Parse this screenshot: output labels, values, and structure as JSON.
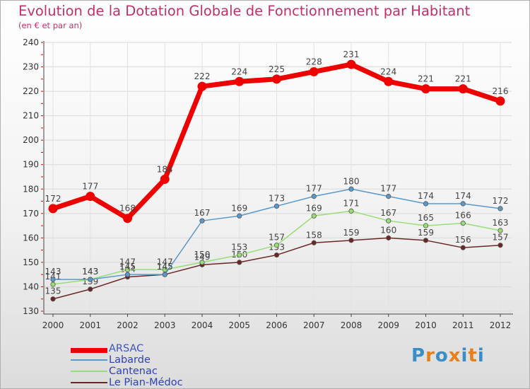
{
  "chart_data": {
    "type": "line",
    "title": "Evolution de la Dotation Globale de Fonctionnement par Habitant",
    "subtitle": "(en € et par an)",
    "x": [
      "2000",
      "2001",
      "2002",
      "2003",
      "2004",
      "2005",
      "2006",
      "2007",
      "2008",
      "2009",
      "2010",
      "2011",
      "2012"
    ],
    "ylim": [
      130,
      240
    ],
    "yticks": [
      130,
      140,
      150,
      160,
      170,
      180,
      190,
      200,
      210,
      220,
      230,
      240
    ],
    "series": [
      {
        "name": "Le Pian-Médoc",
        "color": "#6b2727",
        "values": [
          135,
          139,
          144,
          145,
          149,
          150,
          153,
          158,
          159,
          160,
          159,
          156,
          157
        ]
      },
      {
        "name": "Cantenac",
        "color": "#99dd77",
        "values": [
          141,
          143,
          147,
          147,
          150,
          153,
          157,
          169,
          171,
          167,
          165,
          166,
          163
        ]
      },
      {
        "name": "Labarde",
        "color": "#5a99cc",
        "values": [
          143,
          143,
          145,
          145,
          167,
          169,
          173,
          177,
          180,
          177,
          174,
          174,
          172
        ]
      },
      {
        "name": "ARSAC",
        "color": "#ee0000",
        "values": [
          172,
          177,
          168,
          184,
          222,
          224,
          225,
          228,
          231,
          224,
          221,
          221,
          216
        ]
      }
    ],
    "legend": [
      "ARSAC",
      "Labarde",
      "Cantenac",
      "Le Pian-Médoc"
    ]
  },
  "logo": {
    "letters": [
      "P",
      "r",
      "o",
      "x",
      "i",
      "t",
      "i"
    ],
    "colors": [
      "#3a8ec8",
      "#e8801a",
      "#3a8ec8",
      "#e8801a",
      "#3a8ec8",
      "#e8801a",
      "#3a8ec8"
    ]
  }
}
